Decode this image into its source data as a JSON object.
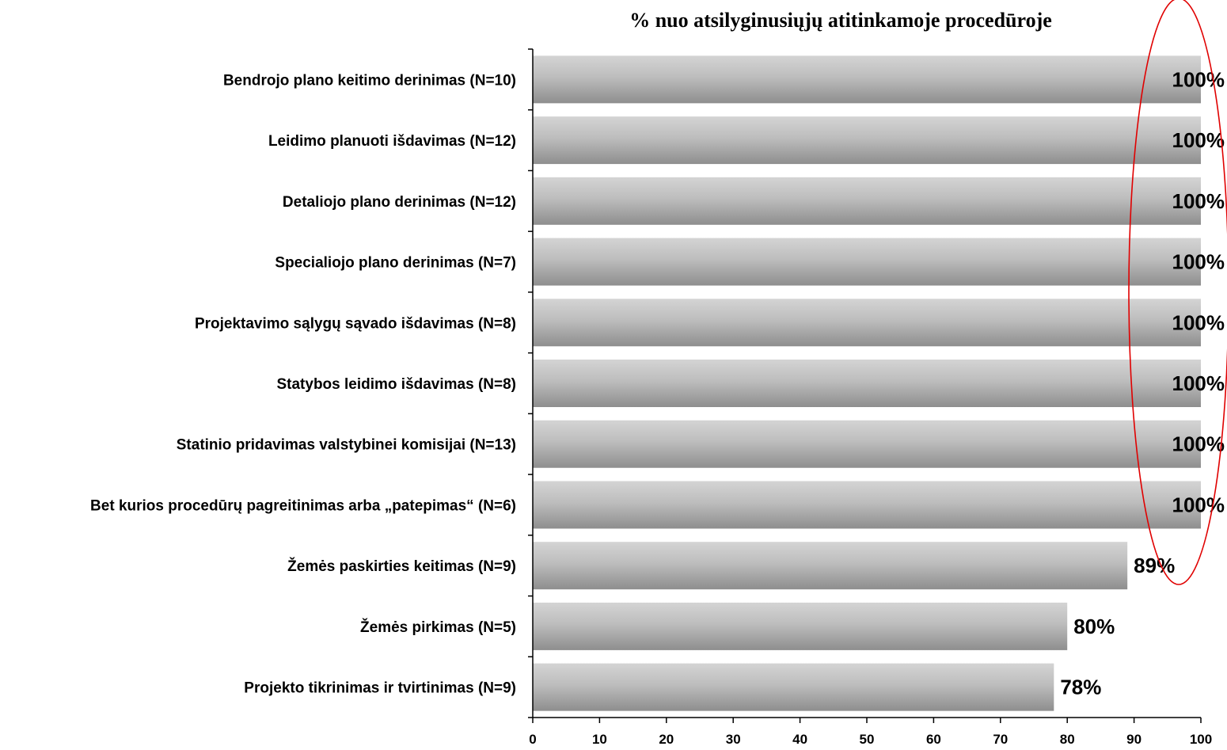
{
  "chart_data": {
    "type": "bar",
    "orientation": "horizontal",
    "title": "% nuo atsilyginusiųjų atitinkamoje procedūroje",
    "categories": [
      "Bendrojo plano keitimo derinimas (N=10)",
      "Leidimo planuoti išdavimas (N=12)",
      "Detaliojo plano derinimas (N=12)",
      "Specialiojo plano derinimas (N=7)",
      "Projektavimo sąlygų sąvado išdavimas (N=8)",
      "Statybos leidimo išdavimas (N=8)",
      "Statinio pridavimas valstybinei komisijai (N=13)",
      "Bet kurios procedūrų pagreitinimas arba „patepimas“ (N=6)",
      "Žemės paskirties keitimas (N=9)",
      "Žemės pirkimas (N=5)",
      "Projekto tikrinimas ir tvirtinimas (N=9)"
    ],
    "values": [
      100,
      100,
      100,
      100,
      100,
      100,
      100,
      100,
      89,
      80,
      78
    ],
    "value_labels": [
      "100%",
      "100%",
      "100%",
      "100%",
      "100%",
      "100%",
      "100%",
      "100%",
      "89%",
      "80%",
      "78%"
    ],
    "xlim": [
      0,
      100
    ],
    "xticks": [
      "0",
      "10",
      "20",
      "30",
      "40",
      "50",
      "60",
      "70",
      "80",
      "90",
      "100"
    ],
    "grid": false,
    "bar_color": "#b3b3b3",
    "highlight_color": "#e00000"
  }
}
